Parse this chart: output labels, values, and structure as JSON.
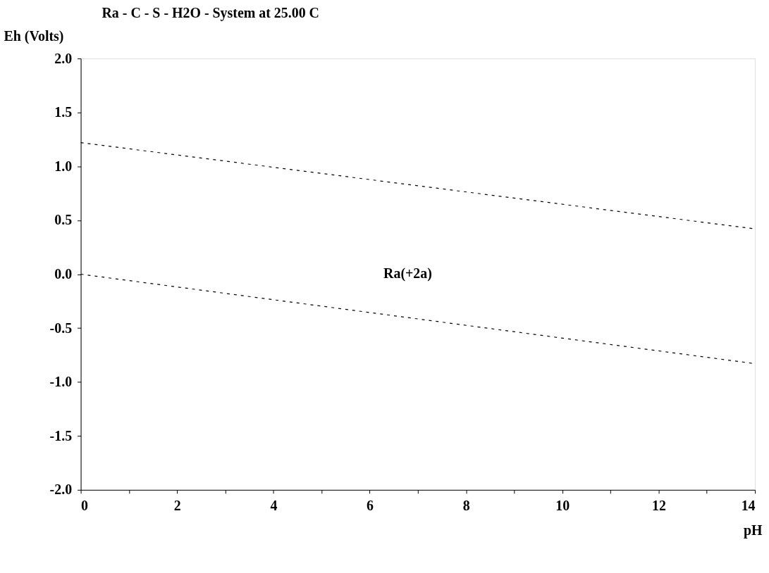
{
  "chart_data": {
    "type": "line",
    "title": "Ra - C - S - H2O - System at 25.00 C",
    "xlabel": "pH",
    "ylabel": "Eh (Volts)",
    "x": [
      0,
      14
    ],
    "series": [
      {
        "color": "#000000",
        "values": [
          1.22,
          0.42
        ]
      },
      {
        "color": "#000000",
        "values": [
          0.0,
          -0.83
        ]
      }
    ],
    "line_style": "dashed",
    "marker": "none",
    "grid": false,
    "legend": false,
    "xlim": [
      0,
      14
    ],
    "ylim": [
      -2.0,
      2.0
    ],
    "xticks": [
      0,
      {
        "value": 1,
        "label": null
      },
      2,
      {
        "value": 3,
        "label": null
      },
      4,
      {
        "value": 5,
        "label": null
      },
      6,
      {
        "value": 7,
        "label": null
      },
      8,
      {
        "value": 9,
        "label": null
      },
      10,
      {
        "value": 11,
        "label": null
      },
      12,
      {
        "value": 13,
        "label": null
      },
      14
    ],
    "yticks": [
      {
        "value": -2.0,
        "label": "-2.0"
      },
      {
        "value": -1.5,
        "label": "-1.5"
      },
      {
        "value": -1.0,
        "label": "-1.0"
      },
      {
        "value": -0.5,
        "label": "-0.5"
      },
      {
        "value": 0.0,
        "label": "0.0"
      },
      {
        "value": 0.5,
        "label": "0.5"
      },
      {
        "value": 1.0,
        "label": "1.0"
      },
      {
        "value": 1.5,
        "label": "1.5"
      },
      {
        "value": 2.0,
        "label": "2.0"
      }
    ],
    "annotations": [
      "Ra(+2a)"
    ]
  }
}
